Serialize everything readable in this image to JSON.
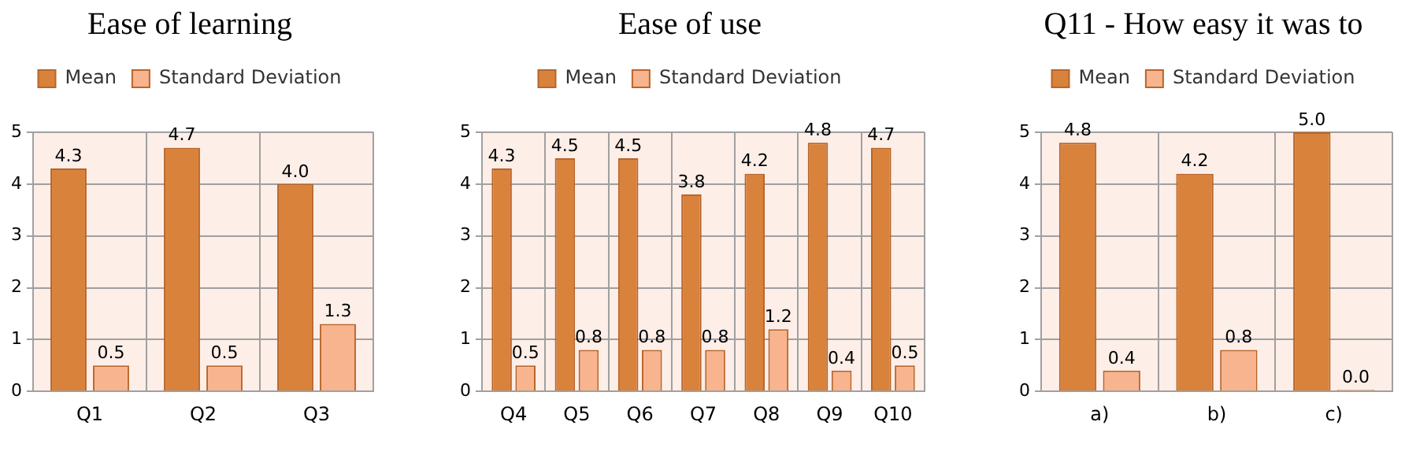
{
  "chart_data": [
    {
      "type": "bar",
      "title": "Ease of learning",
      "categories": [
        "Q1",
        "Q2",
        "Q3"
      ],
      "series": [
        {
          "name": "Mean",
          "color": "#d9823b",
          "values": [
            4.3,
            4.7,
            4.0
          ],
          "value_labels": [
            "4.3",
            "4.7",
            "4.0"
          ]
        },
        {
          "name": "Standard Deviation",
          "color": "#f8b48e",
          "values": [
            0.5,
            0.5,
            1.3
          ],
          "value_labels": [
            "0.5",
            "0.5",
            "1.3"
          ]
        }
      ],
      "ylim": [
        0,
        5
      ],
      "yticks": [
        0,
        1,
        2,
        3,
        4,
        5
      ],
      "grid": true,
      "legend": "top"
    },
    {
      "type": "bar",
      "title": "Ease of use",
      "categories": [
        "Q4",
        "Q5",
        "Q6",
        "Q7",
        "Q8",
        "Q9",
        "Q10"
      ],
      "series": [
        {
          "name": "Mean",
          "color": "#d9823b",
          "values": [
            4.3,
            4.5,
            4.5,
            3.8,
            4.2,
            4.8,
            4.7
          ],
          "value_labels": [
            "4.3",
            "4.5",
            "4.5",
            "3.8",
            "4.2",
            "4.8",
            "4.7"
          ]
        },
        {
          "name": "Standard Deviation",
          "color": "#f8b48e",
          "values": [
            0.5,
            0.8,
            0.8,
            0.8,
            1.2,
            0.4,
            0.5
          ],
          "value_labels": [
            "0.5",
            "0.8",
            "0.8",
            "0.8",
            "1.2",
            "0.4",
            "0.5"
          ]
        }
      ],
      "ylim": [
        0,
        5
      ],
      "yticks": [
        0,
        1,
        2,
        3,
        4,
        5
      ],
      "grid": true,
      "legend": "top"
    },
    {
      "type": "bar",
      "title": "Q11 - How easy it was to",
      "categories": [
        "a)",
        "b)",
        "c)"
      ],
      "series": [
        {
          "name": "Mean",
          "color": "#d9823b",
          "values": [
            4.8,
            4.2,
            5.0
          ],
          "value_labels": [
            "4.8",
            "4.2",
            "5.0"
          ]
        },
        {
          "name": "Standard Deviation",
          "color": "#f8b48e",
          "values": [
            0.4,
            0.8,
            0.0
          ],
          "value_labels": [
            "0.4",
            "0.8",
            "0.0"
          ]
        }
      ],
      "ylim": [
        0,
        5
      ],
      "yticks": [
        0,
        1,
        2,
        3,
        4,
        5
      ],
      "grid": true,
      "legend": "top"
    }
  ]
}
